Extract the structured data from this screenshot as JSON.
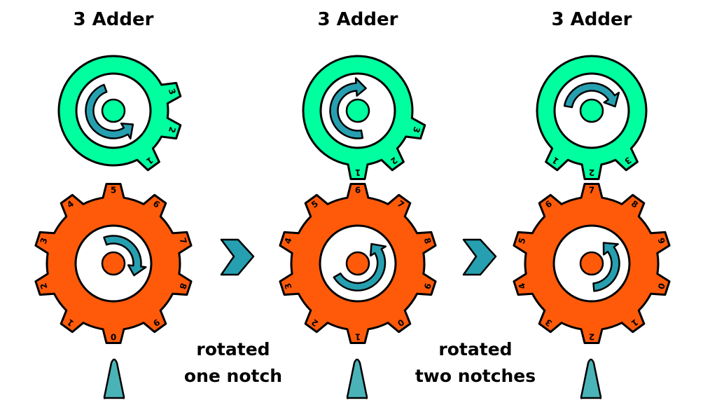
{
  "colors": {
    "adder_gear": "#00ff9f",
    "result_gear": "#ff5a0a",
    "arrow": "#26a0b0",
    "pointer": "#4ab3b8",
    "outline": "#000000"
  },
  "panels": [
    {
      "title": "3 Adder",
      "adder_tooth_labels": [
        "1",
        "2",
        "3"
      ],
      "result_tooth_labels": [
        "0",
        "1",
        "2",
        "3",
        "4",
        "5",
        "6",
        "7",
        "8",
        "9"
      ],
      "rotation_notches": 0
    },
    {
      "title": "3 Adder",
      "adder_tooth_labels": [
        "1",
        "2",
        "3"
      ],
      "result_tooth_labels": [
        "0",
        "1",
        "2",
        "3",
        "4",
        "5",
        "6",
        "7",
        "8",
        "9"
      ],
      "rotation_notches": 1
    },
    {
      "title": "3 Adder",
      "adder_tooth_labels": [
        "1",
        "2",
        "3"
      ],
      "result_tooth_labels": [
        "0",
        "1",
        "2",
        "3",
        "4",
        "5",
        "6",
        "7",
        "8",
        "9"
      ],
      "rotation_notches": 2
    }
  ],
  "transitions": [
    {
      "caption_line1": "rotated",
      "caption_line2": "one notch",
      "icon": "right-arrow-icon"
    },
    {
      "caption_line1": "rotated",
      "caption_line2": "two notches",
      "icon": "right-arrow-icon"
    }
  ]
}
